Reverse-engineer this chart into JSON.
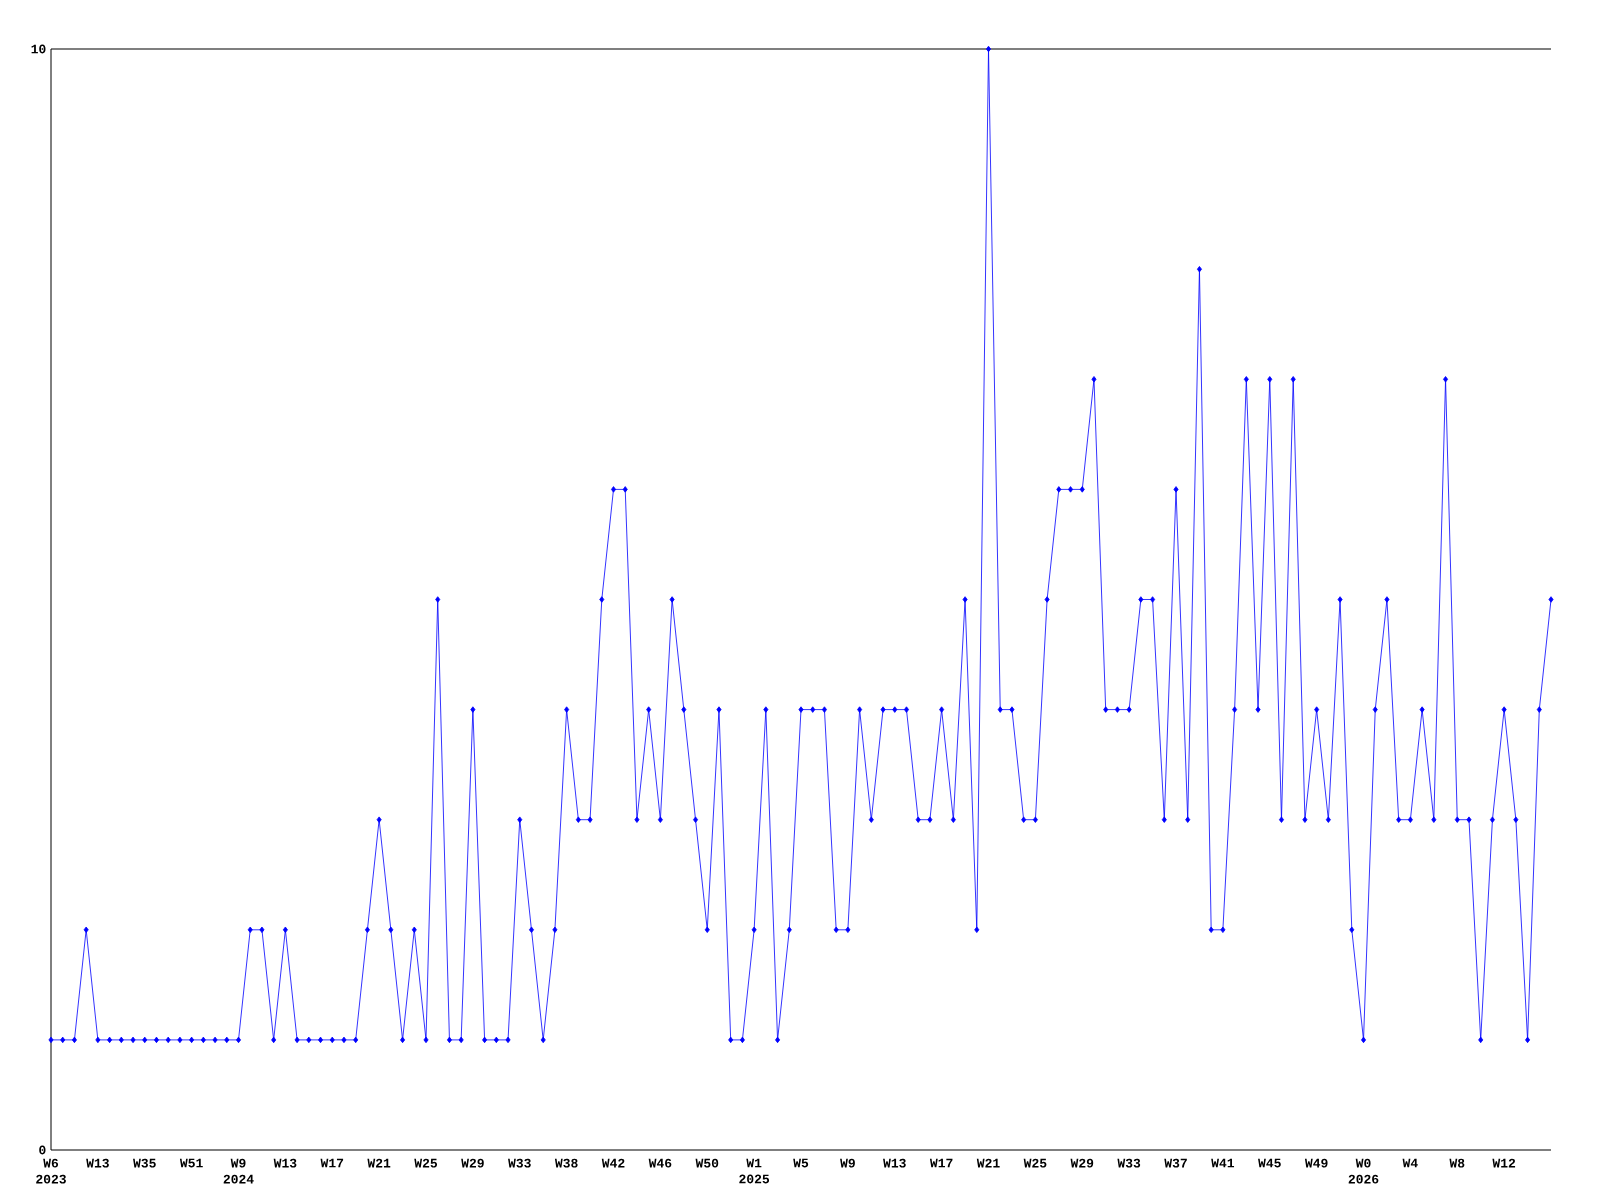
{
  "chart_data": {
    "type": "line",
    "categories": [
      "W6 2023",
      null,
      null,
      null,
      "W13",
      null,
      null,
      null,
      "W35",
      null,
      null,
      null,
      "W51",
      null,
      null,
      null,
      "W9 2024",
      null,
      null,
      null,
      "W13",
      null,
      null,
      null,
      "W17",
      null,
      null,
      null,
      "W21",
      null,
      null,
      null,
      "W25",
      null,
      null,
      null,
      "W29",
      null,
      null,
      null,
      "W33",
      null,
      null,
      null,
      "W38",
      null,
      null,
      null,
      "W42",
      null,
      null,
      null,
      "W46",
      null,
      null,
      null,
      "W50",
      null,
      null,
      null,
      "W1 2025",
      null,
      null,
      null,
      "W5",
      null,
      null,
      null,
      "W9",
      null,
      null,
      null,
      "W13",
      null,
      null,
      null,
      "W17",
      null,
      null,
      null,
      "W21",
      null,
      null,
      null,
      "W25",
      null,
      null,
      null,
      "W29",
      null,
      null,
      null,
      "W33",
      null,
      null,
      null,
      "W37",
      null,
      null,
      null,
      "W41",
      null,
      null,
      null,
      "W45",
      null,
      null,
      null,
      "W49",
      null,
      null,
      null,
      "W0 2026",
      null,
      null,
      null,
      "W4",
      null,
      null,
      null,
      "W8",
      null,
      null,
      null,
      "W12",
      null,
      null,
      null,
      null
    ],
    "series": [
      {
        "color": "#0000ff",
        "values": [
          1,
          1,
          1,
          2,
          1,
          1,
          1,
          1,
          1,
          1,
          1,
          1,
          1,
          1,
          1,
          1,
          1,
          2,
          2,
          1,
          2,
          1,
          1,
          1,
          1,
          1,
          1,
          2,
          3,
          2,
          1,
          2,
          1,
          5,
          1,
          1,
          4,
          1,
          1,
          1,
          3,
          2,
          1,
          2,
          4,
          3,
          3,
          5,
          6,
          6,
          3,
          4,
          3,
          5,
          4,
          3,
          2,
          4,
          1,
          1,
          2,
          4,
          1,
          2,
          4,
          4,
          4,
          2,
          2,
          4,
          3,
          4,
          4,
          4,
          3,
          3,
          4,
          3,
          5,
          2,
          10,
          4,
          4,
          3,
          3,
          5,
          6,
          6,
          6,
          7,
          4,
          4,
          4,
          5,
          5,
          3,
          6,
          3,
          8,
          2,
          2,
          4,
          7,
          4,
          7,
          3,
          7,
          3,
          4,
          3,
          5,
          2,
          1,
          4,
          5,
          3,
          3,
          4,
          3,
          7,
          3,
          3,
          1,
          3,
          4,
          3,
          1,
          4,
          5
        ]
      }
    ],
    "ylim": [
      0,
      10
    ],
    "yticks": [
      0,
      10
    ],
    "marker": "diamond",
    "line_style": "solid",
    "grid": false
  }
}
